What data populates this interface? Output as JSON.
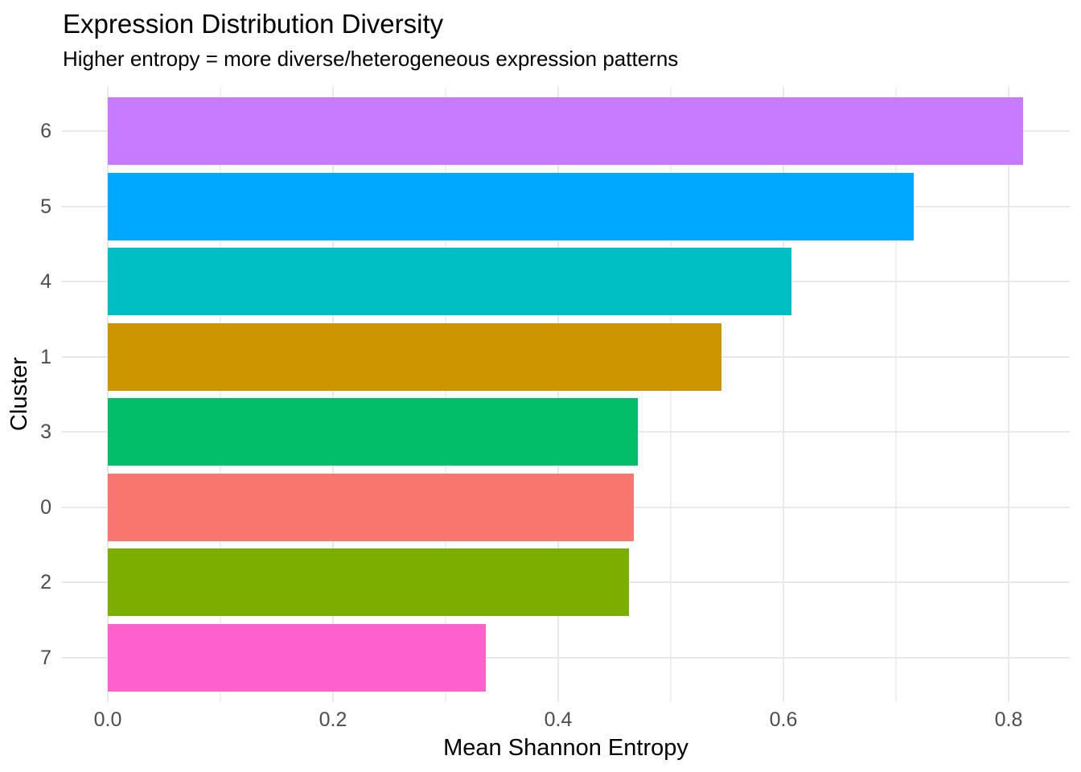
{
  "chart_data": {
    "type": "bar",
    "orientation": "horizontal",
    "title": "Expression Distribution Diversity",
    "subtitle": "Higher entropy = more diverse/heterogeneous expression patterns",
    "xlabel": "Mean Shannon Entropy",
    "ylabel": "Cluster",
    "categories": [
      "6",
      "5",
      "4",
      "1",
      "3",
      "0",
      "2",
      "7"
    ],
    "values": [
      0.813,
      0.716,
      0.607,
      0.545,
      0.471,
      0.467,
      0.463,
      0.336
    ],
    "bar_colors": [
      "#C77CFF",
      "#00A9FF",
      "#00BFC4",
      "#CD9600",
      "#00BE67",
      "#F8766D",
      "#7CAE00",
      "#FF61CC"
    ],
    "x_ticks": [
      "0.0",
      "0.2",
      "0.4",
      "0.6",
      "0.8"
    ],
    "x_tick_values": [
      0.0,
      0.2,
      0.4,
      0.6,
      0.8
    ],
    "x_minor_values": [
      0.1,
      0.3,
      0.5,
      0.7
    ],
    "xlim": [
      -0.041,
      0.854
    ],
    "grid": true,
    "legend": "none",
    "colors": {
      "grid_major": "#E8E8E8",
      "grid_minor": "#F0F0F0",
      "axis_text": "#4D4D4D",
      "text": "#000000",
      "background": "#FFFFFF"
    }
  }
}
